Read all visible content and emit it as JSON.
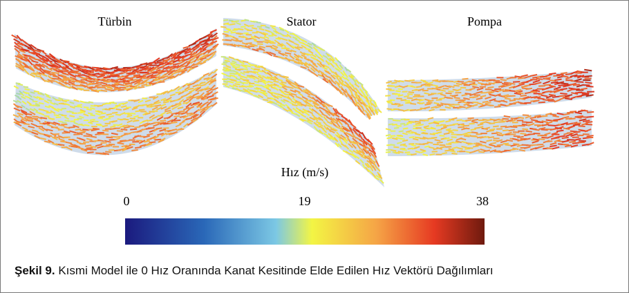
{
  "panels": [
    {
      "label": "Türbin"
    },
    {
      "label": "Stator"
    },
    {
      "label": "Pompa"
    }
  ],
  "colorbar": {
    "title": "Hız (m/s)",
    "min": 0,
    "max": 38,
    "ticks": [
      0,
      19,
      38
    ]
  },
  "caption": {
    "label": "Şekil 9.",
    "text": "Kısmi Model ile 0 Hız Oranında Kanat Kesitinde Elde Edilen Hız Vektörü Dağılımları"
  }
}
